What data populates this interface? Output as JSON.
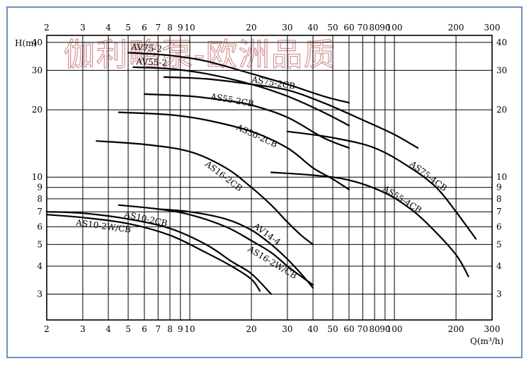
{
  "watermark": "伽利略泵-欧洲品质",
  "chart_data": {
    "type": "line",
    "title": "",
    "xlabel": "Q(m³/h)",
    "ylabel": "H(m)",
    "xscale": "log",
    "yscale": "log",
    "xlim": [
      2,
      300
    ],
    "ylim": [
      2.3,
      43
    ],
    "grid": true,
    "x_ticks": [
      2,
      3,
      4,
      5,
      6,
      7,
      8,
      9,
      10,
      20,
      30,
      40,
      50,
      60,
      70,
      80,
      90,
      100,
      200,
      300
    ],
    "x_tick_labels": [
      "2",
      "3",
      "4",
      "5",
      "6",
      "7",
      "8",
      "9",
      "10",
      "20",
      "30",
      "40",
      "50",
      "60",
      "70",
      "80",
      "90",
      "100",
      "200",
      "300"
    ],
    "y_ticks": [
      3,
      4,
      5,
      6,
      7,
      8,
      9,
      10,
      20,
      30,
      40
    ],
    "y_tick_labels": [
      "3",
      "4",
      "5",
      "6",
      "7",
      "8",
      "9",
      "10",
      "20",
      "30",
      "40"
    ],
    "series": [
      {
        "name": "AV75-2",
        "x": [
          5,
          8,
          12,
          20,
          30,
          45,
          60
        ],
        "y": [
          36,
          35,
          33,
          29,
          26,
          23,
          21.5
        ]
      },
      {
        "name": "AV55-2",
        "x": [
          5.3,
          8,
          12,
          20,
          30,
          45,
          60
        ],
        "y": [
          31,
          30.5,
          29,
          26,
          23,
          19.5,
          17
        ]
      },
      {
        "name": "AS75-2CB",
        "x": [
          7.5,
          12,
          20,
          30,
          45,
          70,
          100,
          130
        ],
        "y": [
          28,
          27.5,
          26,
          24.5,
          21.5,
          18,
          15.5,
          13.5
        ]
      },
      {
        "name": "AS55-2CB",
        "x": [
          6,
          10,
          15,
          20,
          30,
          45,
          60
        ],
        "y": [
          23.5,
          23,
          22,
          21,
          18.5,
          15,
          13.5
        ]
      },
      {
        "name": "AS30-2CB",
        "x": [
          4.5,
          8,
          12,
          20,
          30,
          40,
          50,
          60
        ],
        "y": [
          19.5,
          19,
          18,
          16,
          13.5,
          11,
          9.8,
          8.8
        ]
      },
      {
        "name": "AS16-2CB",
        "x": [
          3.5,
          6,
          10,
          15,
          20,
          25,
          30,
          35,
          40
        ],
        "y": [
          14.5,
          14,
          13,
          11,
          9,
          7.5,
          6.3,
          5.5,
          5
        ]
      },
      {
        "name": "AS75-4CB",
        "x": [
          30,
          50,
          80,
          120,
          160,
          200,
          250
        ],
        "y": [
          16,
          15,
          13.5,
          11,
          9,
          7,
          5.3
        ]
      },
      {
        "name": "AS55-4CB",
        "x": [
          25,
          40,
          60,
          90,
          120,
          150,
          200,
          230
        ],
        "y": [
          10.5,
          10.2,
          9.7,
          8.5,
          7.2,
          6,
          4.5,
          3.6
        ]
      },
      {
        "name": "AV14-4",
        "x": [
          7,
          10,
          15,
          20,
          25,
          30,
          35,
          40
        ],
        "y": [
          7.2,
          7,
          6.5,
          5.8,
          5,
          4.3,
          3.7,
          3.2
        ]
      },
      {
        "name": "AS16-2W/CB",
        "x": [
          4.5,
          7,
          10,
          15,
          20,
          25,
          30,
          35,
          40
        ],
        "y": [
          7.5,
          7.2,
          6.8,
          6,
          5.2,
          4.6,
          4,
          3.6,
          3.3
        ]
      },
      {
        "name": "AS10-2CB",
        "x": [
          2,
          3,
          5,
          8,
          12,
          16,
          20,
          25
        ],
        "y": [
          7,
          6.9,
          6.5,
          5.9,
          5,
          4.2,
          3.7,
          3
        ]
      },
      {
        "name": "AS10-2W/CB",
        "x": [
          2,
          3,
          5,
          8,
          12,
          16,
          20,
          22
        ],
        "y": [
          6.8,
          6.6,
          6.2,
          5.5,
          4.6,
          4,
          3.5,
          3.1
        ]
      }
    ]
  }
}
